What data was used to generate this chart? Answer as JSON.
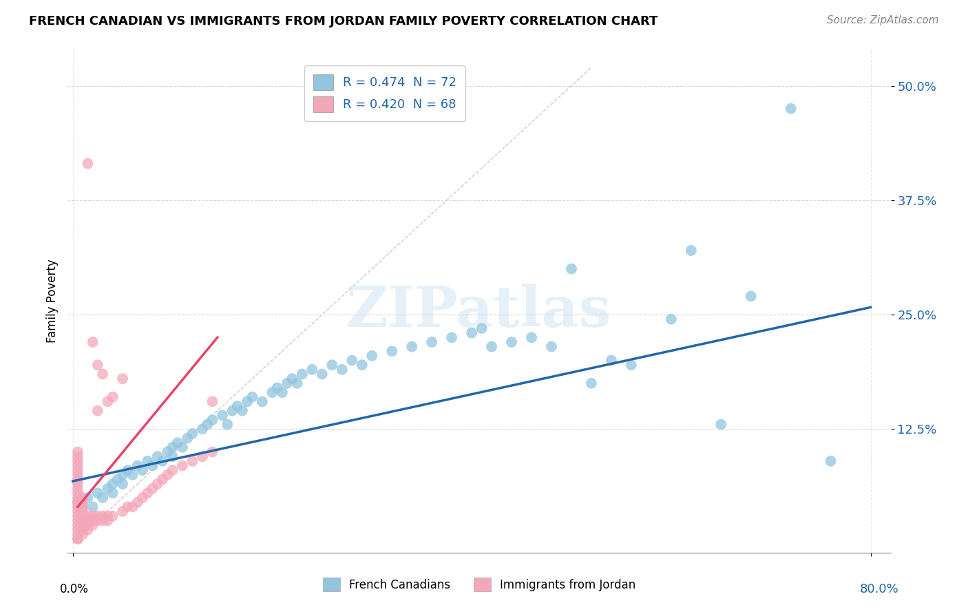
{
  "title": "FRENCH CANADIAN VS IMMIGRANTS FROM JORDAN FAMILY POVERTY CORRELATION CHART",
  "source": "Source: ZipAtlas.com",
  "ylabel": "Family Poverty",
  "ytick_labels": [
    "50.0%",
    "37.5%",
    "25.0%",
    "12.5%"
  ],
  "ytick_values": [
    0.5,
    0.375,
    0.25,
    0.125
  ],
  "xlim": [
    -0.005,
    0.82
  ],
  "ylim": [
    -0.01,
    0.54
  ],
  "legend_r1": "R = 0.474",
  "legend_n1": "N = 72",
  "legend_r2": "R = 0.420",
  "legend_n2": "N = 68",
  "color_blue": "#92c5de",
  "color_pink": "#f4a7b9",
  "color_blue_line": "#2166ac",
  "color_pink_line": "#e8436a",
  "color_blue_dark": "#2166ac",
  "watermark_text": "ZIPatlas",
  "blue_scatter_x": [
    0.005,
    0.01,
    0.015,
    0.02,
    0.025,
    0.03,
    0.035,
    0.04,
    0.04,
    0.045,
    0.05,
    0.05,
    0.055,
    0.06,
    0.065,
    0.07,
    0.075,
    0.08,
    0.085,
    0.09,
    0.095,
    0.1,
    0.1,
    0.105,
    0.11,
    0.115,
    0.12,
    0.13,
    0.135,
    0.14,
    0.15,
    0.155,
    0.16,
    0.165,
    0.17,
    0.175,
    0.18,
    0.19,
    0.2,
    0.205,
    0.21,
    0.215,
    0.22,
    0.225,
    0.23,
    0.24,
    0.25,
    0.26,
    0.27,
    0.28,
    0.29,
    0.3,
    0.32,
    0.34,
    0.36,
    0.38,
    0.4,
    0.41,
    0.42,
    0.44,
    0.46,
    0.48,
    0.5,
    0.52,
    0.54,
    0.56,
    0.6,
    0.62,
    0.65,
    0.68,
    0.72,
    0.76
  ],
  "blue_scatter_y": [
    0.045,
    0.04,
    0.05,
    0.04,
    0.055,
    0.05,
    0.06,
    0.055,
    0.065,
    0.07,
    0.065,
    0.075,
    0.08,
    0.075,
    0.085,
    0.08,
    0.09,
    0.085,
    0.095,
    0.09,
    0.1,
    0.095,
    0.105,
    0.11,
    0.105,
    0.115,
    0.12,
    0.125,
    0.13,
    0.135,
    0.14,
    0.13,
    0.145,
    0.15,
    0.145,
    0.155,
    0.16,
    0.155,
    0.165,
    0.17,
    0.165,
    0.175,
    0.18,
    0.175,
    0.185,
    0.19,
    0.185,
    0.195,
    0.19,
    0.2,
    0.195,
    0.205,
    0.21,
    0.215,
    0.22,
    0.225,
    0.23,
    0.235,
    0.215,
    0.22,
    0.225,
    0.215,
    0.3,
    0.175,
    0.2,
    0.195,
    0.245,
    0.32,
    0.13,
    0.27,
    0.475,
    0.09
  ],
  "pink_scatter_x": [
    0.005,
    0.005,
    0.005,
    0.005,
    0.005,
    0.005,
    0.005,
    0.005,
    0.005,
    0.005,
    0.005,
    0.005,
    0.005,
    0.005,
    0.005,
    0.005,
    0.005,
    0.005,
    0.005,
    0.005,
    0.005,
    0.01,
    0.01,
    0.01,
    0.01,
    0.01,
    0.01,
    0.01,
    0.01,
    0.01,
    0.015,
    0.015,
    0.015,
    0.015,
    0.02,
    0.02,
    0.02,
    0.025,
    0.025,
    0.03,
    0.03,
    0.035,
    0.035,
    0.04,
    0.05,
    0.055,
    0.06,
    0.065,
    0.07,
    0.075,
    0.08,
    0.085,
    0.09,
    0.095,
    0.1,
    0.11,
    0.12,
    0.13,
    0.14,
    0.14,
    0.015,
    0.02,
    0.025,
    0.025,
    0.03,
    0.035,
    0.04,
    0.05
  ],
  "pink_scatter_y": [
    0.005,
    0.01,
    0.015,
    0.02,
    0.025,
    0.03,
    0.035,
    0.04,
    0.045,
    0.05,
    0.055,
    0.06,
    0.065,
    0.07,
    0.075,
    0.08,
    0.085,
    0.09,
    0.095,
    0.1,
    0.005,
    0.01,
    0.015,
    0.02,
    0.025,
    0.03,
    0.035,
    0.04,
    0.045,
    0.05,
    0.015,
    0.02,
    0.025,
    0.03,
    0.02,
    0.025,
    0.03,
    0.025,
    0.03,
    0.025,
    0.03,
    0.025,
    0.03,
    0.03,
    0.035,
    0.04,
    0.04,
    0.045,
    0.05,
    0.055,
    0.06,
    0.065,
    0.07,
    0.075,
    0.08,
    0.085,
    0.09,
    0.095,
    0.1,
    0.155,
    0.415,
    0.22,
    0.195,
    0.145,
    0.185,
    0.155,
    0.16,
    0.18
  ],
  "blue_line_x": [
    0.0,
    0.8
  ],
  "blue_line_y": [
    0.068,
    0.258
  ],
  "pink_line_x": [
    0.005,
    0.145
  ],
  "pink_line_y": [
    0.04,
    0.225
  ],
  "diag_line_x": [
    0.0,
    0.52
  ],
  "diag_line_y": [
    0.0,
    0.52
  ],
  "grid_color": "#cccccc",
  "bottom_legend": [
    {
      "label": "French Canadians",
      "color": "#92c5de"
    },
    {
      "label": "Immigrants from Jordan",
      "color": "#f4a7b9"
    }
  ]
}
